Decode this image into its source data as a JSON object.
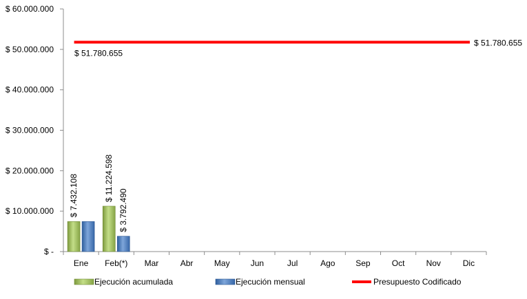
{
  "chart_data": {
    "type": "bar",
    "categories": [
      "Ene",
      "Feb(*)",
      "Mar",
      "Abr",
      "May",
      "Jun",
      "Jul",
      "Ago",
      "Sep",
      "Oct",
      "Nov",
      "Dic"
    ],
    "series": [
      {
        "name": "Ejecución acumulada",
        "values": [
          7432108,
          11224598,
          null,
          null,
          null,
          null,
          null,
          null,
          null,
          null,
          null,
          null
        ],
        "labels": [
          "$ 7.432.108",
          "$ 11.224.598"
        ],
        "color": "#9BBB59"
      },
      {
        "name": "Ejecución mensual",
        "values": [
          7432108,
          3792490,
          null,
          null,
          null,
          null,
          null,
          null,
          null,
          null,
          null,
          null
        ],
        "labels": [
          "",
          "$ 3.792.490"
        ],
        "color": "#4F81BD"
      },
      {
        "name": "Presupuesto Codificado",
        "type": "line",
        "value": 51780655,
        "labels": [
          "$ 51.780.655",
          "$ 51.780.655"
        ],
        "color": "#FF0000"
      }
    ],
    "ylim": [
      0,
      60000000
    ],
    "ytick_values": [
      0,
      10000000,
      20000000,
      30000000,
      40000000,
      50000000,
      60000000
    ],
    "ytick_labels": [
      "$ -",
      "$ 10.000.000",
      "$ 20.000.000",
      "$ 30.000.000",
      "$ 40.000.000",
      "$ 50.000.000",
      "$ 60.000.000"
    ],
    "grid": false,
    "legend_position": "bottom"
  }
}
